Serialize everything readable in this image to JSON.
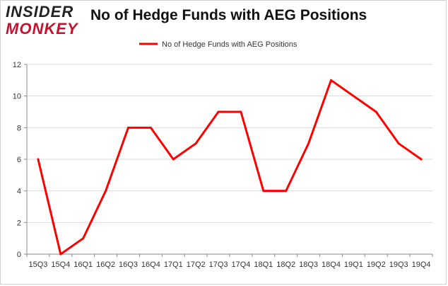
{
  "logo": {
    "line1": "INSIDER",
    "line2": "MONKEY"
  },
  "colors": {
    "series": "#ff0000",
    "grid": "#d9d9d9",
    "axis": "#888888",
    "logo_red": "#c8102e"
  },
  "chart_data": {
    "type": "line",
    "title": "No of Hedge Funds with AEG Positions",
    "xlabel": "",
    "ylabel": "",
    "categories": [
      "15Q3",
      "15Q4",
      "16Q1",
      "16Q2",
      "16Q3",
      "16Q4",
      "17Q1",
      "17Q2",
      "17Q3",
      "17Q4",
      "18Q1",
      "18Q2",
      "18Q3",
      "18Q4",
      "19Q1",
      "19Q2",
      "19Q3",
      "19Q4"
    ],
    "series": [
      {
        "name": "No of Hedge Funds with AEG Positions",
        "values": [
          6,
          0,
          1,
          4,
          8,
          8,
          6,
          7,
          9,
          9,
          4,
          4,
          7,
          11,
          10,
          9,
          7,
          6
        ]
      }
    ],
    "ylim": [
      0,
      12
    ],
    "yticks": [
      "0",
      "2",
      "4",
      "6",
      "8",
      "10",
      "12"
    ],
    "grid": true,
    "legend": "top-center"
  }
}
